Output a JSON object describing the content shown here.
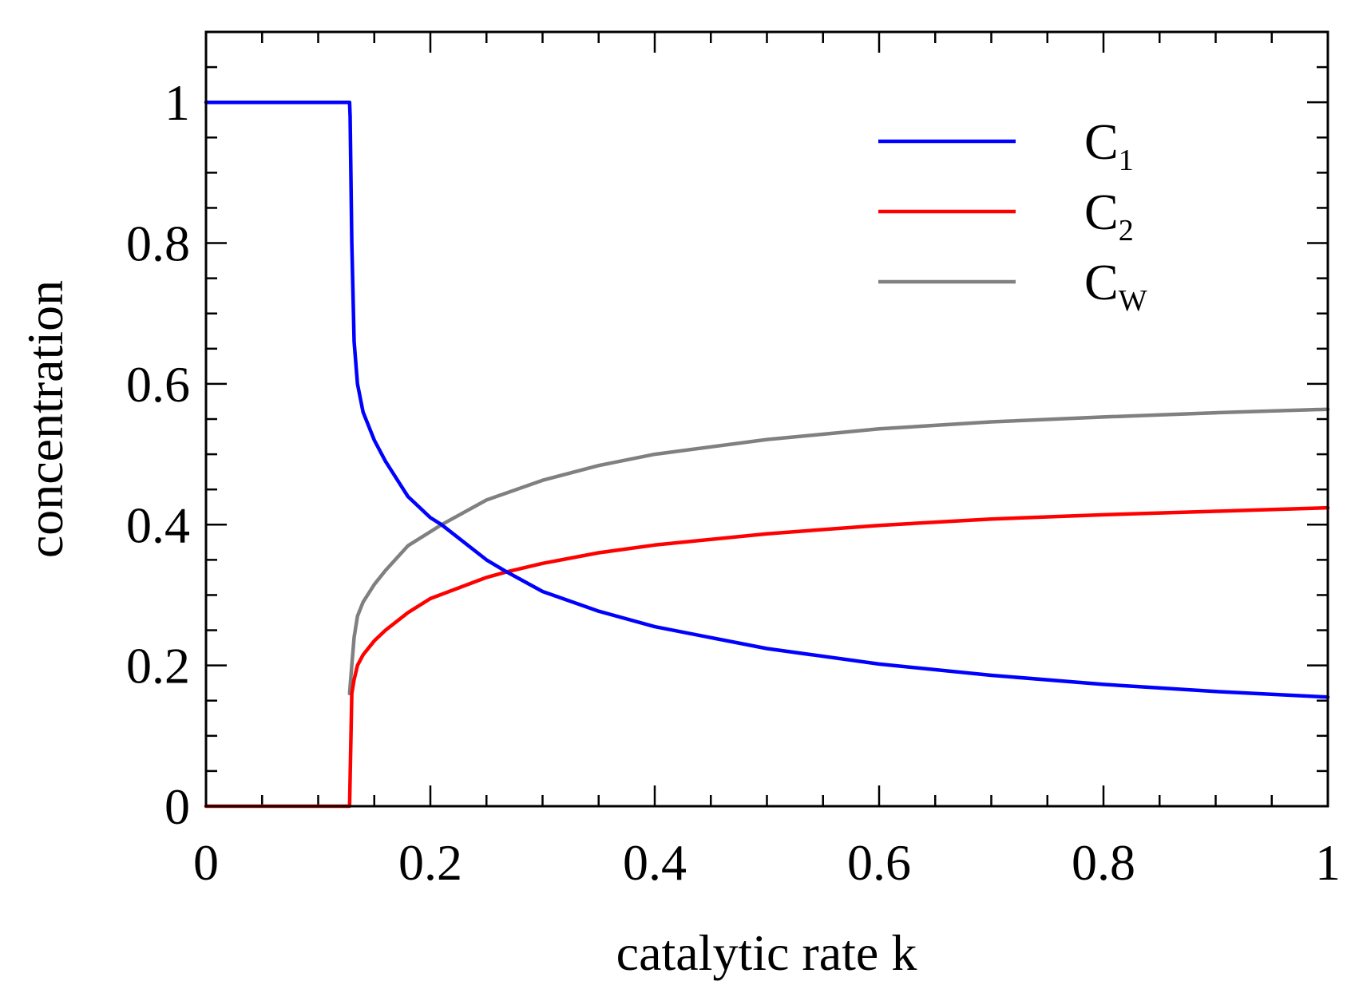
{
  "chart_data": {
    "type": "line",
    "title": "",
    "xlabel": "catalytic rate k",
    "ylabel": "concentration",
    "xlim": [
      0,
      1
    ],
    "ylim": [
      0,
      1.1
    ],
    "grid": false,
    "legend_position": "top-right",
    "x_ticks": {
      "major": [
        0,
        0.2,
        0.4,
        0.6,
        0.8,
        1
      ],
      "labels": [
        "0",
        "0.2",
        "0.4",
        "0.6",
        "0.8",
        "1"
      ],
      "minor_step": 0.05
    },
    "y_ticks": {
      "major": [
        0,
        0.2,
        0.4,
        0.6,
        0.8,
        1
      ],
      "labels": [
        "0",
        "0.2",
        "0.4",
        "0.6",
        "0.8",
        "1"
      ],
      "minor_step": 0.05
    },
    "series": [
      {
        "name": "C1",
        "legend_main": "C",
        "legend_sub": "1",
        "color": "#0000ff",
        "x": [
          0,
          0.128,
          0.1285,
          0.13,
          0.132,
          0.135,
          0.14,
          0.15,
          0.16,
          0.18,
          0.2,
          0.21,
          0.25,
          0.268,
          0.3,
          0.35,
          0.4,
          0.5,
          0.6,
          0.7,
          0.8,
          0.9,
          1.0
        ],
        "y": [
          1.0,
          1.0,
          0.98,
          0.8,
          0.66,
          0.6,
          0.56,
          0.52,
          0.49,
          0.44,
          0.41,
          0.4,
          0.35,
          0.333,
          0.305,
          0.277,
          0.255,
          0.224,
          0.202,
          0.186,
          0.173,
          0.163,
          0.155
        ]
      },
      {
        "name": "C2",
        "legend_main": "C",
        "legend_sub": "2",
        "color": "#ff0000",
        "x": [
          0,
          0.128,
          0.13,
          0.132,
          0.135,
          0.14,
          0.15,
          0.16,
          0.18,
          0.2,
          0.25,
          0.268,
          0.3,
          0.35,
          0.4,
          0.5,
          0.6,
          0.7,
          0.8,
          0.9,
          1.0
        ],
        "y": [
          0,
          0,
          0.16,
          0.18,
          0.2,
          0.215,
          0.235,
          0.25,
          0.275,
          0.295,
          0.325,
          0.333,
          0.345,
          0.36,
          0.371,
          0.387,
          0.399,
          0.408,
          0.414,
          0.419,
          0.424
        ]
      },
      {
        "name": "CW",
        "legend_main": "C",
        "legend_sub": "W",
        "color": "#808080",
        "x": [
          0.128,
          0.13,
          0.132,
          0.135,
          0.14,
          0.15,
          0.16,
          0.18,
          0.2,
          0.21,
          0.25,
          0.3,
          0.35,
          0.4,
          0.5,
          0.6,
          0.7,
          0.8,
          0.9,
          1.0
        ],
        "y": [
          0.16,
          0.2,
          0.24,
          0.27,
          0.29,
          0.315,
          0.335,
          0.37,
          0.39,
          0.4,
          0.435,
          0.463,
          0.484,
          0.5,
          0.521,
          0.536,
          0.546,
          0.553,
          0.559,
          0.564
        ]
      }
    ]
  }
}
